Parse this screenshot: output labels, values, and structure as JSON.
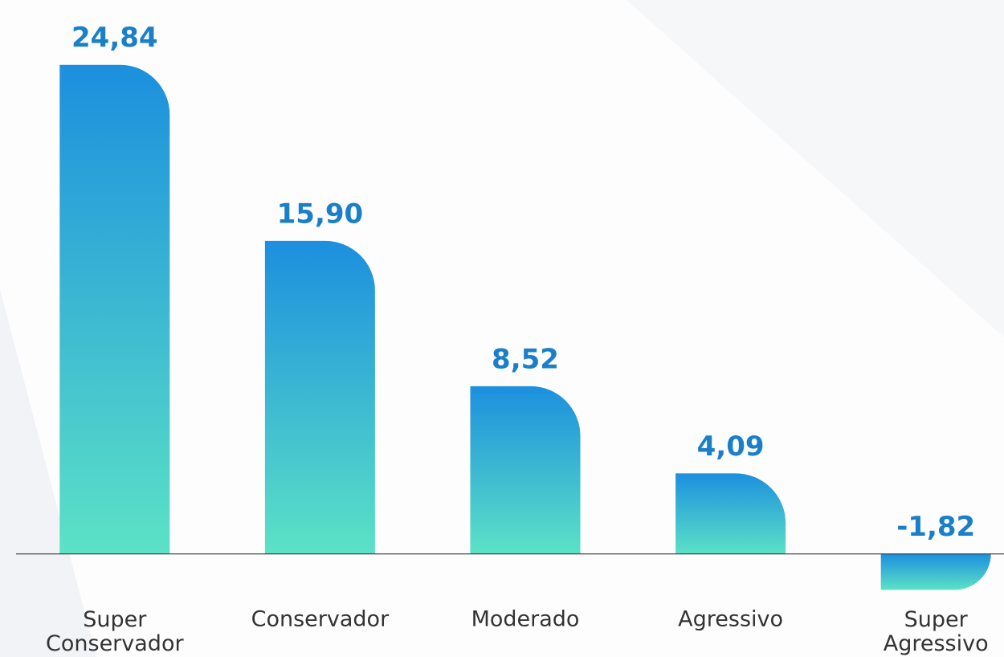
{
  "chart_data": {
    "type": "bar",
    "categories": [
      "Super Conservador",
      "Conservador",
      "Moderado",
      "Agressivo",
      "Super Agressivo"
    ],
    "values": [
      24.84,
      15.9,
      8.52,
      4.09,
      -1.82
    ],
    "value_labels": [
      "24,84",
      "15,90",
      "8,52",
      "4,09",
      "-1,82"
    ],
    "ylim": [
      -2.5,
      26.5
    ],
    "colors": [
      "#1c8fde",
      "#5ce2c6"
    ]
  }
}
